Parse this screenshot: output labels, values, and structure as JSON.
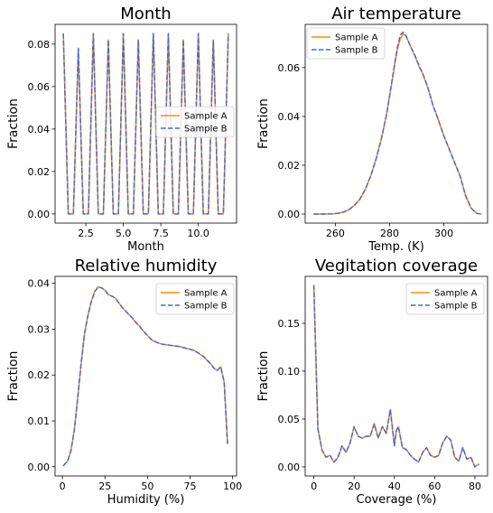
{
  "colors": {
    "sample_a": "#ff8c00",
    "sample_b": "#4169e1"
  },
  "chart_data": [
    {
      "type": "line",
      "title": "Month",
      "xlabel": "Month",
      "ylabel": "Fraction",
      "xlim": [
        0.45,
        12.55
      ],
      "ylim": [
        -0.0043,
        0.0893
      ],
      "xticks": [
        2.5,
        5.0,
        7.5,
        10.0
      ],
      "xtick_labels": [
        "2.5",
        "5.0",
        "7.5",
        "10.0"
      ],
      "yticks": [
        0.0,
        0.02,
        0.04,
        0.06,
        0.08
      ],
      "ytick_labels": [
        "0.00",
        "0.02",
        "0.04",
        "0.06",
        "0.08"
      ],
      "legend": "center-right",
      "series": [
        {
          "name": "Sample A",
          "style": "solid",
          "x": [
            1.0,
            1.33,
            1.67,
            2.0,
            2.33,
            2.67,
            3.0,
            3.33,
            3.67,
            4.0,
            4.33,
            4.67,
            5.0,
            5.33,
            5.67,
            6.0,
            6.33,
            6.67,
            7.0,
            7.33,
            7.67,
            8.0,
            8.33,
            8.67,
            9.0,
            9.33,
            9.67,
            10.0,
            10.33,
            10.67,
            11.0,
            11.33,
            11.67,
            12.0
          ],
          "y": [
            0.085,
            0.0,
            0.0,
            0.078,
            0.0,
            0.0,
            0.085,
            0.0,
            0.0,
            0.082,
            0.0,
            0.0,
            0.085,
            0.0,
            0.0,
            0.082,
            0.0,
            0.0,
            0.085,
            0.0,
            0.0,
            0.085,
            0.0,
            0.0,
            0.082,
            0.0,
            0.0,
            0.085,
            0.0,
            0.0,
            0.082,
            0.0,
            0.0,
            0.085
          ]
        },
        {
          "name": "Sample B",
          "style": "dashed",
          "x": [
            1.0,
            1.33,
            1.67,
            2.0,
            2.33,
            2.67,
            3.0,
            3.33,
            3.67,
            4.0,
            4.33,
            4.67,
            5.0,
            5.33,
            5.67,
            6.0,
            6.33,
            6.67,
            7.0,
            7.33,
            7.67,
            8.0,
            8.33,
            8.67,
            9.0,
            9.33,
            9.67,
            10.0,
            10.33,
            10.67,
            11.0,
            11.33,
            11.67,
            12.0
          ],
          "y": [
            0.085,
            0.0,
            0.0,
            0.078,
            0.0,
            0.0,
            0.085,
            0.0,
            0.0,
            0.082,
            0.0,
            0.0,
            0.085,
            0.0,
            0.0,
            0.082,
            0.0,
            0.0,
            0.085,
            0.0,
            0.0,
            0.085,
            0.0,
            0.0,
            0.082,
            0.0,
            0.0,
            0.085,
            0.0,
            0.0,
            0.082,
            0.0,
            0.0,
            0.085
          ]
        }
      ]
    },
    {
      "type": "line",
      "title": "Air temperature",
      "xlabel": "Temp. (K)",
      "ylabel": "Fraction",
      "xlim": [
        248.9,
        316.1
      ],
      "ylim": [
        -0.0037,
        0.0777
      ],
      "xticks": [
        260,
        280,
        300
      ],
      "xtick_labels": [
        "260",
        "280",
        "300"
      ],
      "yticks": [
        0.0,
        0.02,
        0.04,
        0.06
      ],
      "ytick_labels": [
        "0.00",
        "0.02",
        "0.04",
        "0.06"
      ],
      "legend": "top-left",
      "series": [
        {
          "name": "Sample A",
          "style": "solid",
          "x": [
            252,
            256,
            259,
            261,
            263,
            265,
            267,
            269,
            271,
            273,
            275,
            277,
            279,
            281,
            282,
            283,
            284,
            285,
            286,
            287,
            288,
            289,
            290,
            291,
            292,
            294,
            296,
            298,
            300,
            302,
            304,
            306,
            307,
            308,
            310,
            312,
            314
          ],
          "y": [
            0.0,
            0.0,
            0.0001,
            0.0003,
            0.0008,
            0.0018,
            0.0035,
            0.006,
            0.01,
            0.0155,
            0.0225,
            0.031,
            0.0415,
            0.055,
            0.062,
            0.068,
            0.072,
            0.0738,
            0.073,
            0.0705,
            0.068,
            0.0655,
            0.063,
            0.06,
            0.058,
            0.052,
            0.0445,
            0.0385,
            0.032,
            0.0265,
            0.021,
            0.0155,
            0.0115,
            0.0075,
            0.0025,
            0.0003,
            0.0
          ]
        },
        {
          "name": "Sample B",
          "style": "dashed",
          "x": [
            252,
            256,
            259,
            261,
            263,
            265,
            267,
            269,
            271,
            273,
            275,
            277,
            279,
            281,
            282,
            283,
            284,
            285,
            286,
            287,
            288,
            289,
            290,
            291,
            292,
            294,
            296,
            298,
            300,
            302,
            304,
            306,
            307,
            308,
            310,
            312,
            314
          ],
          "y": [
            0.0,
            0.0,
            0.0001,
            0.0003,
            0.0008,
            0.0018,
            0.0035,
            0.006,
            0.01,
            0.0155,
            0.0225,
            0.031,
            0.0415,
            0.0555,
            0.0625,
            0.069,
            0.0735,
            0.0745,
            0.0732,
            0.0705,
            0.068,
            0.0658,
            0.0632,
            0.0602,
            0.0582,
            0.0522,
            0.0445,
            0.0385,
            0.032,
            0.0265,
            0.021,
            0.0155,
            0.0115,
            0.0075,
            0.0025,
            0.0003,
            0.0
          ]
        }
      ]
    },
    {
      "type": "line",
      "title": "Relative humidity",
      "xlabel": "Humidity (%)",
      "ylabel": "Fraction",
      "xlim": [
        -4.3,
        102.3
      ],
      "ylim": [
        -0.002,
        0.0415
      ],
      "xticks": [
        0,
        25,
        50,
        75,
        100
      ],
      "xtick_labels": [
        "0",
        "25",
        "50",
        "75",
        "100"
      ],
      "yticks": [
        0.0,
        0.01,
        0.02,
        0.03,
        0.04
      ],
      "ytick_labels": [
        "0.00",
        "0.01",
        "0.02",
        "0.03",
        "0.04"
      ],
      "legend": "top-right",
      "series": [
        {
          "name": "Sample A",
          "style": "solid",
          "x": [
            0.5,
            3,
            5,
            7,
            9,
            11,
            13,
            15,
            17,
            19,
            21,
            23,
            25,
            27,
            29,
            31,
            33,
            35,
            37,
            39,
            41,
            43,
            45,
            47,
            49,
            51,
            53,
            55,
            57,
            59,
            61,
            63,
            65,
            67,
            69,
            71,
            73,
            75,
            77,
            79,
            81,
            83,
            85,
            87,
            89,
            91,
            93,
            95,
            97
          ],
          "y": [
            0.0002,
            0.0012,
            0.0035,
            0.008,
            0.015,
            0.0225,
            0.029,
            0.033,
            0.036,
            0.0382,
            0.0392,
            0.039,
            0.0385,
            0.0375,
            0.0372,
            0.0368,
            0.0358,
            0.0348,
            0.034,
            0.0332,
            0.0325,
            0.0315,
            0.0308,
            0.0298,
            0.029,
            0.0282,
            0.0275,
            0.0272,
            0.0269,
            0.0267,
            0.0266,
            0.0265,
            0.0264,
            0.0263,
            0.0262,
            0.026,
            0.0258,
            0.0256,
            0.0254,
            0.025,
            0.0245,
            0.024,
            0.0232,
            0.0225,
            0.0215,
            0.021,
            0.0218,
            0.0185,
            0.005
          ]
        },
        {
          "name": "Sample B",
          "style": "dashed",
          "x": [
            0.5,
            3,
            5,
            7,
            9,
            11,
            13,
            15,
            17,
            19,
            21,
            23,
            25,
            27,
            29,
            31,
            33,
            35,
            37,
            39,
            41,
            43,
            45,
            47,
            49,
            51,
            53,
            55,
            57,
            59,
            61,
            63,
            65,
            67,
            69,
            71,
            73,
            75,
            77,
            79,
            81,
            83,
            85,
            87,
            89,
            91,
            93,
            95,
            97
          ],
          "y": [
            0.0002,
            0.0012,
            0.0035,
            0.008,
            0.015,
            0.0225,
            0.029,
            0.033,
            0.036,
            0.0382,
            0.0392,
            0.039,
            0.0385,
            0.0375,
            0.0372,
            0.0368,
            0.0358,
            0.0348,
            0.034,
            0.0332,
            0.0325,
            0.0315,
            0.0308,
            0.0298,
            0.029,
            0.0282,
            0.0275,
            0.0272,
            0.0269,
            0.0267,
            0.0266,
            0.0265,
            0.0264,
            0.0263,
            0.0262,
            0.026,
            0.0258,
            0.0256,
            0.0254,
            0.025,
            0.0245,
            0.024,
            0.0232,
            0.0225,
            0.0215,
            0.021,
            0.0218,
            0.0185,
            0.005
          ]
        }
      ]
    },
    {
      "type": "line",
      "title": "Vegitation coverage",
      "xlabel": "Coverage (%)",
      "ylabel": "Fraction",
      "xlim": [
        -4.3,
        86.3
      ],
      "ylim": [
        -0.0095,
        0.199
      ],
      "xticks": [
        0,
        20,
        40,
        60,
        80
      ],
      "xtick_labels": [
        "0",
        "20",
        "40",
        "60",
        "80"
      ],
      "yticks": [
        0.0,
        0.05,
        0.1,
        0.15
      ],
      "ytick_labels": [
        "0.00",
        "0.05",
        "0.10",
        "0.15"
      ],
      "legend": "top-right",
      "series": [
        {
          "name": "Sample A",
          "style": "solid",
          "x": [
            0,
            2,
            4,
            6,
            8,
            10,
            12,
            14,
            16,
            18,
            20,
            22,
            24,
            26,
            28,
            30,
            32,
            34,
            36,
            38,
            40,
            41,
            42,
            44,
            46,
            48,
            50,
            52,
            54,
            56,
            58,
            60,
            62,
            64,
            66,
            68,
            70,
            72,
            74,
            76,
            78,
            80,
            82
          ],
          "y": [
            0.19,
            0.04,
            0.018,
            0.01,
            0.012,
            0.005,
            0.01,
            0.022,
            0.015,
            0.025,
            0.042,
            0.032,
            0.03,
            0.032,
            0.032,
            0.045,
            0.03,
            0.042,
            0.035,
            0.06,
            0.022,
            0.038,
            0.042,
            0.02,
            0.018,
            0.012,
            0.008,
            0.005,
            0.015,
            0.02,
            0.012,
            0.01,
            0.012,
            0.025,
            0.032,
            0.028,
            0.01,
            0.006,
            0.02,
            0.008,
            0.01,
            0.0,
            0.003
          ]
        },
        {
          "name": "Sample B",
          "style": "dashed",
          "x": [
            0,
            2,
            4,
            6,
            8,
            10,
            12,
            14,
            16,
            18,
            20,
            22,
            24,
            26,
            28,
            30,
            32,
            34,
            36,
            38,
            40,
            41,
            42,
            44,
            46,
            48,
            50,
            52,
            54,
            56,
            58,
            60,
            62,
            64,
            66,
            68,
            70,
            72,
            74,
            76,
            78,
            80,
            82
          ],
          "y": [
            0.19,
            0.04,
            0.018,
            0.01,
            0.012,
            0.005,
            0.01,
            0.022,
            0.015,
            0.025,
            0.042,
            0.032,
            0.03,
            0.032,
            0.032,
            0.045,
            0.03,
            0.042,
            0.035,
            0.06,
            0.022,
            0.038,
            0.042,
            0.02,
            0.018,
            0.012,
            0.008,
            0.005,
            0.015,
            0.02,
            0.012,
            0.01,
            0.012,
            0.025,
            0.032,
            0.028,
            0.01,
            0.006,
            0.02,
            0.008,
            0.01,
            0.0,
            0.003
          ]
        }
      ]
    }
  ]
}
